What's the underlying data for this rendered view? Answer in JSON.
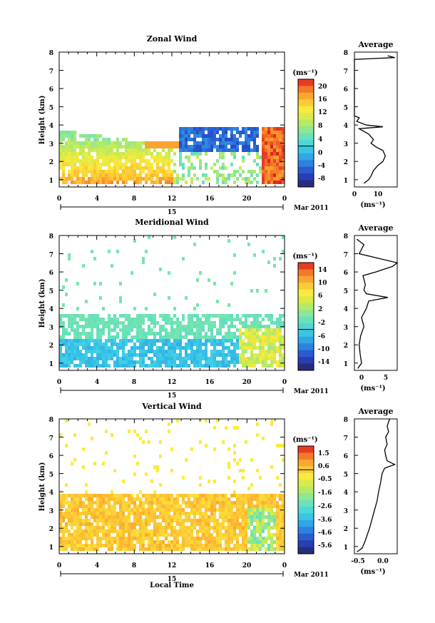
{
  "chart_data": [
    {
      "type": "heatmap",
      "title": "Zonal Wind",
      "ylabel": "Height (km)",
      "unit_label": "(ms⁻¹)",
      "x_ticks": [
        "0",
        "4",
        "8",
        "12",
        "16",
        "20",
        "0"
      ],
      "y_ticks": [
        "1",
        "2",
        "3",
        "4",
        "5",
        "6",
        "7",
        "8"
      ],
      "date_label": "15",
      "date_suffix": "Mar 2011",
      "xlim": [
        0,
        24
      ],
      "ylim": [
        0.6,
        8
      ],
      "colorbar_ticks": [
        "20",
        "16",
        "12",
        "8",
        "4",
        "0",
        "-4",
        "-8"
      ],
      "colorbar_range": [
        -10,
        22
      ],
      "average": {
        "title": "Average",
        "x_ticks": [
          "0",
          "10"
        ],
        "xlim": [
          0,
          18
        ],
        "xlabel": "(ms⁻¹)",
        "profile": [
          [
            0.8,
            4
          ],
          [
            1.0,
            6
          ],
          [
            1.2,
            7
          ],
          [
            1.5,
            8
          ],
          [
            1.8,
            10
          ],
          [
            2.0,
            12
          ],
          [
            2.3,
            13
          ],
          [
            2.6,
            12
          ],
          [
            2.8,
            9
          ],
          [
            3.0,
            7
          ],
          [
            3.2,
            8
          ],
          [
            3.5,
            6
          ],
          [
            3.8,
            2
          ],
          [
            3.9,
            12
          ],
          [
            4.0,
            5
          ],
          [
            4.2,
            1
          ],
          [
            4.4,
            2
          ],
          [
            4.5,
            0
          ],
          [
            7.6,
            0
          ],
          [
            7.7,
            17
          ],
          [
            7.8,
            14
          ]
        ]
      }
    },
    {
      "type": "heatmap",
      "title": "Meridional Wind",
      "ylabel": "Height (km)",
      "unit_label": "(ms⁻¹)",
      "x_ticks": [
        "0",
        "4",
        "8",
        "12",
        "16",
        "20",
        "0"
      ],
      "y_ticks": [
        "1",
        "2",
        "3",
        "4",
        "5",
        "6",
        "7",
        "8"
      ],
      "date_label": "15",
      "date_suffix": "Mar 2011",
      "xlim": [
        0,
        24
      ],
      "ylim": [
        0.6,
        8
      ],
      "colorbar_ticks": [
        "14",
        "10",
        "6",
        "2",
        "-2",
        "-6",
        "-10",
        "-14"
      ],
      "colorbar_range": [
        -16,
        16
      ],
      "average": {
        "title": "Average",
        "x_ticks": [
          "0",
          "5"
        ],
        "xlim": [
          -1.5,
          7.5
        ],
        "xlabel": "(ms⁻¹)",
        "profile": [
          [
            0.7,
            -0.8
          ],
          [
            1.0,
            0.0
          ],
          [
            1.5,
            -0.3
          ],
          [
            2.0,
            -0.5
          ],
          [
            2.5,
            -0.2
          ],
          [
            3.0,
            0.5
          ],
          [
            3.5,
            0.0
          ],
          [
            4.0,
            1.0
          ],
          [
            4.4,
            1.5
          ],
          [
            4.6,
            5.5
          ],
          [
            4.8,
            1.0
          ],
          [
            5.0,
            0.5
          ],
          [
            5.3,
            0.8
          ],
          [
            5.8,
            0.3
          ],
          [
            6.0,
            3.0
          ],
          [
            6.3,
            6.5
          ],
          [
            6.5,
            7.5
          ],
          [
            7.0,
            -0.5
          ],
          [
            7.5,
            0.5
          ],
          [
            7.8,
            -1.0
          ]
        ]
      }
    },
    {
      "type": "heatmap",
      "title": "Vertical Wind",
      "ylabel": "Height (km)",
      "xlabel": "Local Time",
      "unit_label": "(ms⁻¹)",
      "x_ticks": [
        "0",
        "4",
        "8",
        "12",
        "16",
        "20",
        "0"
      ],
      "y_ticks": [
        "1",
        "2",
        "3",
        "4",
        "5",
        "6",
        "7",
        "8"
      ],
      "date_label": "15",
      "date_suffix": "Mar 2011",
      "xlim": [
        0,
        24
      ],
      "ylim": [
        0.6,
        8
      ],
      "colorbar_ticks": [
        "1.5",
        "0.6",
        "-0.5",
        "-1.6",
        "-2.6",
        "-3.6",
        "-4.6",
        "-5.6"
      ],
      "colorbar_range": [
        -6.0,
        2.0
      ],
      "average": {
        "title": "Average",
        "x_ticks": [
          "-0.5",
          "0.0"
        ],
        "xlim": [
          -0.6,
          0.25
        ],
        "xlabel": "(ms⁻¹)",
        "profile": [
          [
            0.7,
            -0.55
          ],
          [
            0.9,
            -0.45
          ],
          [
            1.2,
            -0.4
          ],
          [
            1.6,
            -0.35
          ],
          [
            2.0,
            -0.3
          ],
          [
            2.5,
            -0.25
          ],
          [
            3.0,
            -0.2
          ],
          [
            3.5,
            -0.15
          ],
          [
            4.0,
            -0.12
          ],
          [
            4.5,
            -0.08
          ],
          [
            5.0,
            -0.05
          ],
          [
            5.3,
            0.0
          ],
          [
            5.5,
            0.2
          ],
          [
            5.7,
            0.05
          ],
          [
            6.0,
            0.02
          ],
          [
            6.3,
            0.0
          ],
          [
            6.6,
            0.05
          ],
          [
            7.0,
            0.02
          ],
          [
            7.3,
            0.08
          ],
          [
            7.6,
            0.05
          ],
          [
            8.0,
            0.1
          ]
        ]
      }
    }
  ]
}
